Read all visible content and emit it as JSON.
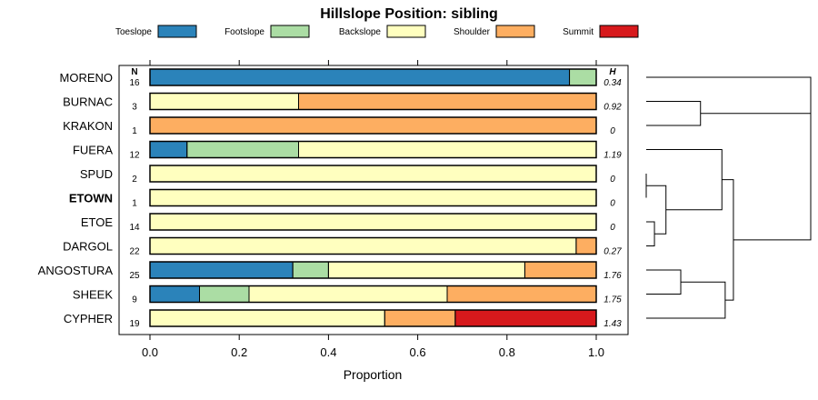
{
  "chart_data": {
    "type": "bar",
    "subtype": "stacked-proportion-horizontal",
    "title": "Hillslope Position: sibling",
    "xlabel": "Proportion",
    "ylabel": "",
    "xlim": [
      0,
      1
    ],
    "x_ticks": [
      "0.0",
      "0.2",
      "0.4",
      "0.6",
      "0.8",
      "1.0"
    ],
    "x_tick_values": [
      0,
      0.2,
      0.4,
      0.6,
      0.8,
      1.0
    ],
    "n_header": "N",
    "h_header": "H",
    "legend": [
      {
        "name": "Toeslope",
        "color": "#2b83ba"
      },
      {
        "name": "Footslope",
        "color": "#abdda4"
      },
      {
        "name": "Backslope",
        "color": "#ffffbf"
      },
      {
        "name": "Shoulder",
        "color": "#fdae61"
      },
      {
        "name": "Summit",
        "color": "#d7191c"
      }
    ],
    "series_names": [
      "Toeslope",
      "Footslope",
      "Backslope",
      "Shoulder",
      "Summit"
    ],
    "rows": [
      {
        "name": "MORENO",
        "bold": false,
        "n": "16",
        "h": "0.34",
        "values": [
          0.94,
          0.06,
          0,
          0,
          0
        ]
      },
      {
        "name": "BURNAC",
        "bold": false,
        "n": "3",
        "h": "0.92",
        "values": [
          0,
          0,
          0.333,
          0.667,
          0
        ]
      },
      {
        "name": "KRAKON",
        "bold": false,
        "n": "1",
        "h": "0",
        "values": [
          0,
          0,
          0,
          1.0,
          0
        ]
      },
      {
        "name": "FUERA",
        "bold": false,
        "n": "12",
        "h": "1.19",
        "values": [
          0.083,
          0.25,
          0.667,
          0,
          0
        ]
      },
      {
        "name": "SPUD",
        "bold": false,
        "n": "2",
        "h": "0",
        "values": [
          0,
          0,
          1.0,
          0,
          0
        ]
      },
      {
        "name": "ETOWN",
        "bold": true,
        "n": "1",
        "h": "0",
        "values": [
          0,
          0,
          1.0,
          0,
          0
        ]
      },
      {
        "name": "ETOE",
        "bold": false,
        "n": "14",
        "h": "0",
        "values": [
          0,
          0,
          1.0,
          0,
          0
        ]
      },
      {
        "name": "DARGOL",
        "bold": false,
        "n": "22",
        "h": "0.27",
        "values": [
          0,
          0,
          0.955,
          0.045,
          0
        ]
      },
      {
        "name": "ANGOSTURA",
        "bold": false,
        "n": "25",
        "h": "1.76",
        "values": [
          0.32,
          0.08,
          0.44,
          0.16,
          0
        ]
      },
      {
        "name": "SHEEK",
        "bold": false,
        "n": "9",
        "h": "1.75",
        "values": [
          0.111,
          0.111,
          0.444,
          0.334,
          0
        ]
      },
      {
        "name": "CYPHER",
        "bold": false,
        "n": "19",
        "h": "1.43",
        "values": [
          0,
          0,
          0.526,
          0.158,
          0.316
        ]
      }
    ],
    "dendrogram": {
      "leaf_order": [
        "MORENO",
        "BURNAC",
        "KRAKON",
        "FUERA",
        "SPUD",
        "ETOWN",
        "ETOE",
        "DARGOL",
        "ANGOSTURA",
        "SHEEK",
        "CYPHER"
      ],
      "merges": [
        {
          "a": "SPUD",
          "b": "ETOWN",
          "height": 0.0
        },
        {
          "a": "ETOE",
          "b": "DARGOL",
          "height": 0.05
        },
        {
          "a": "SPUD+ETOWN",
          "b": "ETOE+DARGOL",
          "height": 0.12
        },
        {
          "a": "FUERA",
          "b": "SPUD+ETOWN+ETOE+DARGOL",
          "height": 0.46
        },
        {
          "a": "BURNAC",
          "b": "KRAKON",
          "height": 0.33
        },
        {
          "a": "ANGOSTURA",
          "b": "SHEEK",
          "height": 0.21
        },
        {
          "a": "ANGOSTURA+SHEEK",
          "b": "CYPHER",
          "height": 0.48
        },
        {
          "a": "FUERA+SPUD+ETOWN+ETOE+DARGOL",
          "b": "ANGOSTURA+SHEEK+CYPHER",
          "height": 0.53
        },
        {
          "a": "MORENO",
          "b": "BURNAC+KRAKON",
          "height": 1.0
        },
        {
          "a": "MORENO+BURNAC+KRAKON",
          "b": "FUERA+SPUD+ETOWN+ETOE+DARGOL+ANGOSTURA+SHEEK+CYPHER",
          "height": 1.0
        }
      ]
    }
  }
}
